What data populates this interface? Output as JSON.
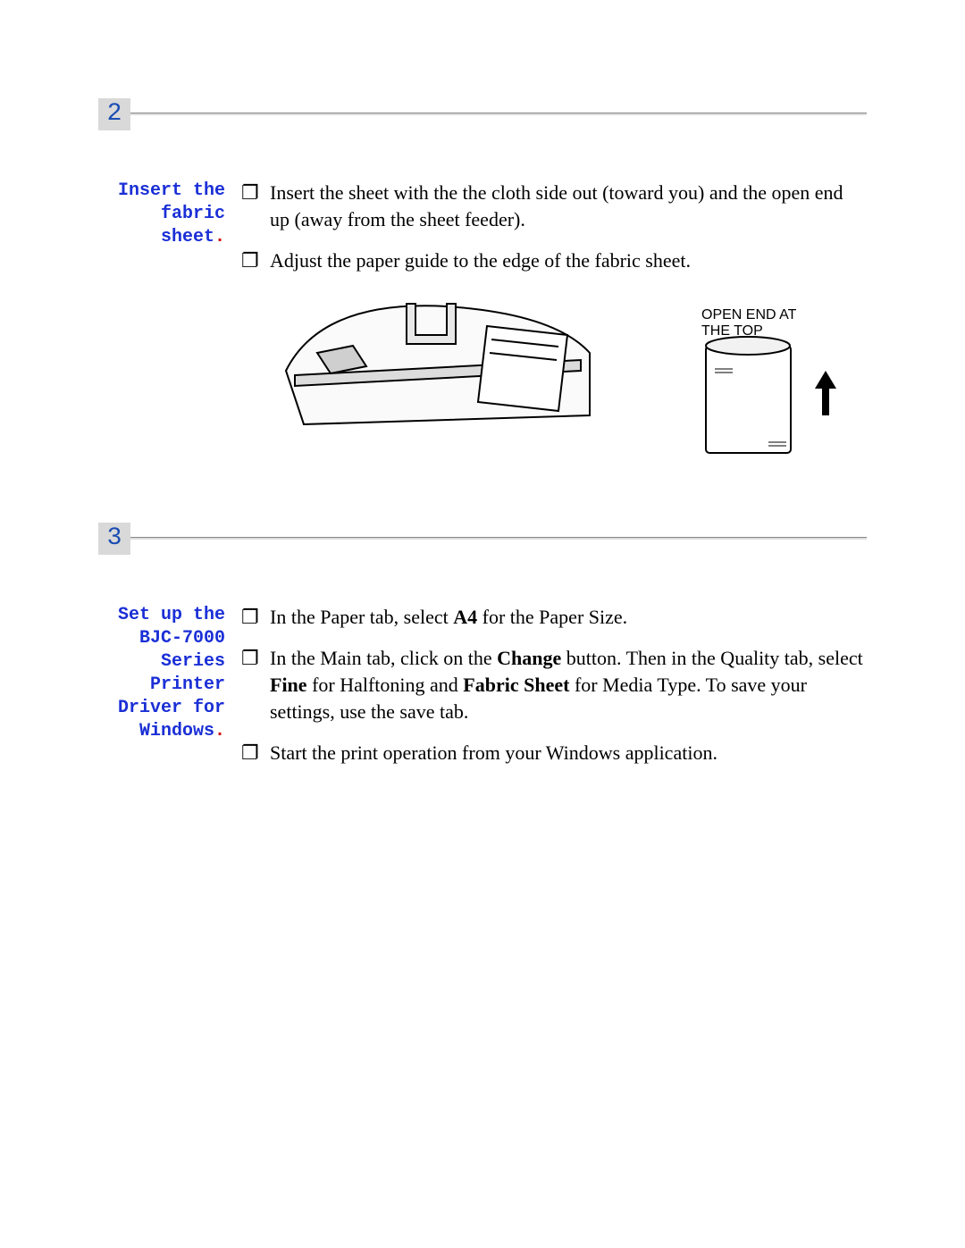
{
  "colors": {
    "stepbox_bg": "#d9d9d9",
    "step_num": "#1a4db3",
    "side_blue": "#1a2fd6",
    "side_red": "#d10000",
    "body_text": "#000000",
    "page_bg": "#ffffff"
  },
  "steps": [
    {
      "number": "2",
      "side_label_parts": [
        {
          "text": "Insert the fabric sheet",
          "color": "blue"
        },
        {
          "text": ".",
          "color": "red"
        }
      ],
      "side_label_plain": "Insert the fabric sheet.",
      "bullets": [
        {
          "html": "Insert the sheet with the the cloth side out (toward you) and the open end up (away from the sheet feeder)."
        },
        {
          "html": "Adjust the paper guide to the edge of the fabric sheet."
        }
      ],
      "illustration": {
        "label_line1": "OPEN END AT",
        "label_line2": "THE TOP"
      }
    },
    {
      "number": "3",
      "side_label_parts": [
        {
          "text": "Set up the BJC-7000 Series Printer Driver for Windows",
          "color": "blue"
        },
        {
          "text": ".",
          "color": "red"
        }
      ],
      "side_label_plain": "Set up the BJC-7000 Series Printer Driver for Windows.",
      "bullets": [
        {
          "html": "In the Paper tab, select <b>A4</b> for the Paper Size."
        },
        {
          "html": "In the Main tab, click on the <b>Change</b> button. Then in the Quality tab, select <b>Fine</b> for Halftoning and <b>Fabric Sheet</b> for Media Type. To save your settings, use the save tab."
        },
        {
          "html": "Start the print operation from your Windows application."
        }
      ]
    }
  ]
}
